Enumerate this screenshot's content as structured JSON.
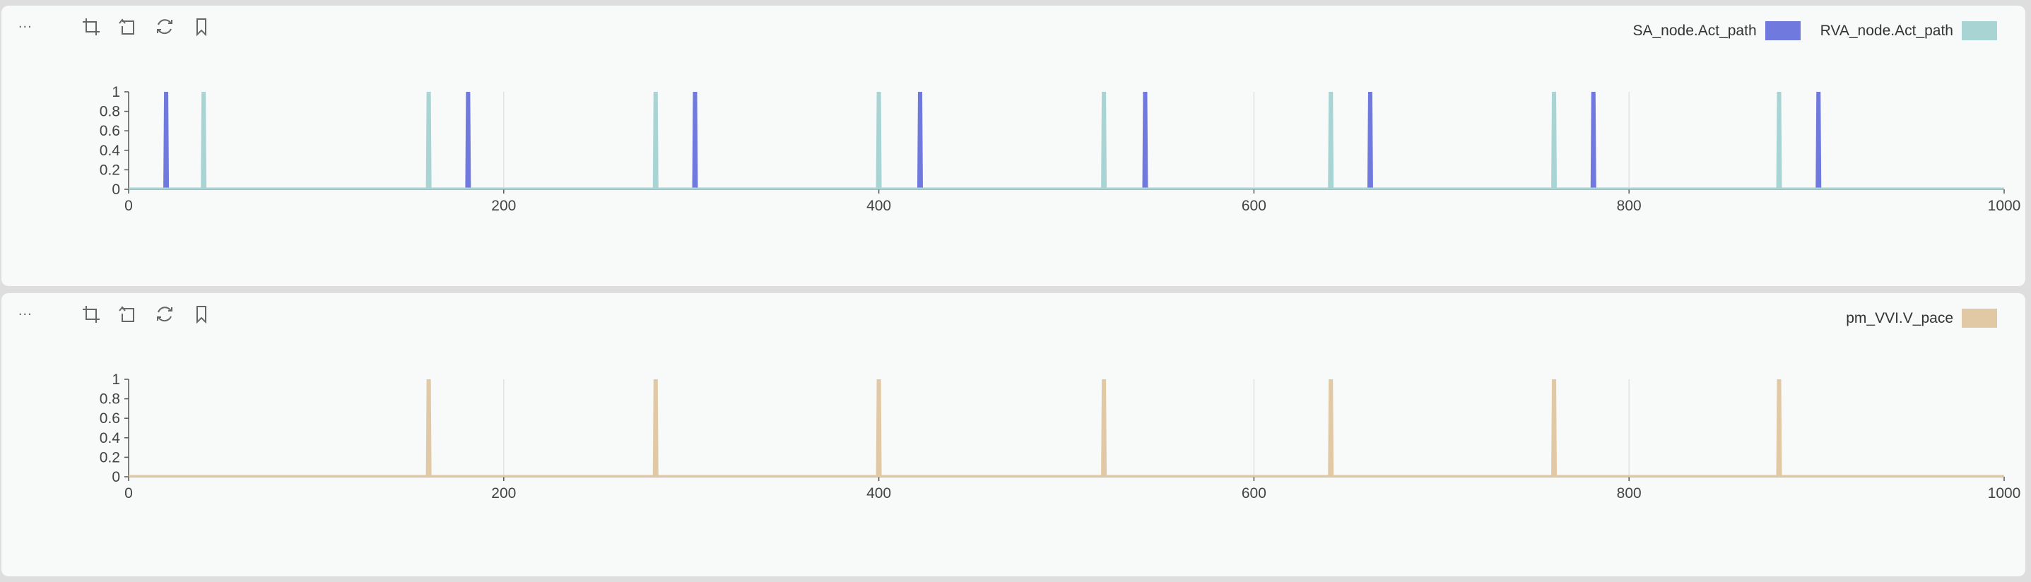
{
  "panels": [
    {
      "menu_label": "...",
      "toolbar": [
        "crop-icon",
        "undo-icon",
        "refresh-icon",
        "bookmark-icon"
      ],
      "legend": [
        {
          "label": "SA_node.Act_path",
          "color": "#7079de"
        },
        {
          "label": "RVA_node.Act_path",
          "color": "#a9d4d4"
        }
      ]
    },
    {
      "menu_label": "...",
      "toolbar": [
        "crop-icon",
        "undo-icon",
        "refresh-icon",
        "bookmark-icon"
      ],
      "legend": [
        {
          "label": "pm_VVI.V_pace",
          "color": "#e2c9a6"
        }
      ]
    }
  ],
  "chart_data": [
    {
      "type": "area",
      "x_ticks": [
        "0",
        "200",
        "400",
        "600",
        "800",
        "1000"
      ],
      "y_ticks": [
        "0",
        "0.2",
        "0.4",
        "0.6",
        "0.8",
        "1"
      ],
      "xlim": [
        0,
        1000
      ],
      "ylim": [
        0,
        1
      ],
      "grid": "vertical",
      "legend_position": "top-right",
      "series": [
        {
          "name": "SA_node.Act_path",
          "color": "#7079de",
          "pulses": [
            20,
            181,
            302,
            422,
            542,
            662,
            781,
            901
          ],
          "height": 1
        },
        {
          "name": "RVA_node.Act_path",
          "color": "#a9d4d4",
          "pulses": [
            40,
            160,
            281,
            400,
            520,
            641,
            760,
            880
          ],
          "height": 1
        }
      ]
    },
    {
      "type": "area",
      "x_ticks": [
        "0",
        "200",
        "400",
        "600",
        "800",
        "1000"
      ],
      "y_ticks": [
        "0",
        "0.2",
        "0.4",
        "0.6",
        "0.8",
        "1"
      ],
      "xlim": [
        0,
        1000
      ],
      "ylim": [
        0,
        1
      ],
      "grid": "vertical",
      "legend_position": "top-right",
      "series": [
        {
          "name": "pm_VVI.V_pace",
          "color": "#e2c9a6",
          "pulses": [
            160,
            281,
            400,
            520,
            641,
            760,
            880
          ],
          "height": 1
        }
      ]
    }
  ]
}
